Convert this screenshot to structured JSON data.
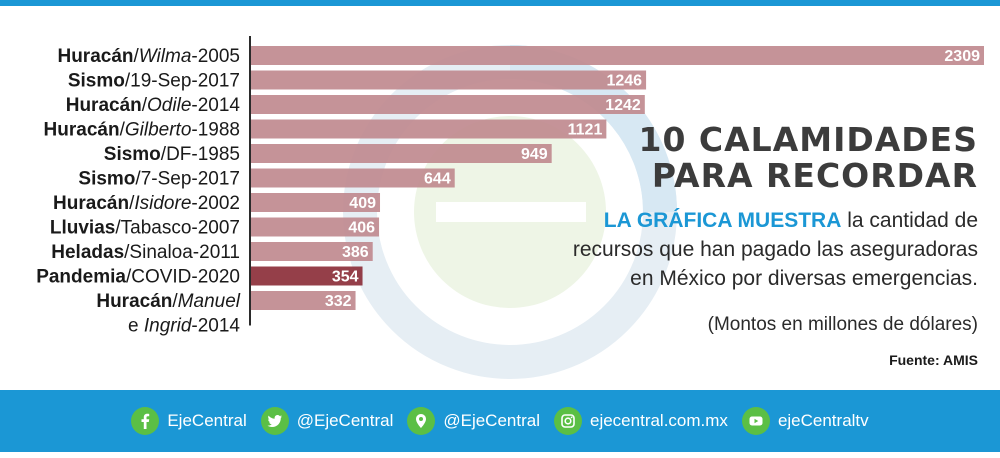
{
  "chart_data": {
    "type": "bar",
    "orientation": "horizontal",
    "categories": [
      {
        "parts": [
          {
            "t": "Huracán",
            "s": "b"
          },
          {
            "t": "/",
            "s": ""
          },
          {
            "t": "Wilma",
            "s": "i"
          },
          {
            "t": "-2005",
            "s": ""
          }
        ]
      },
      {
        "parts": [
          {
            "t": "Sismo",
            "s": "b"
          },
          {
            "t": "/19-Sep-2017",
            "s": ""
          }
        ]
      },
      {
        "parts": [
          {
            "t": "Huracán",
            "s": "b"
          },
          {
            "t": "/",
            "s": ""
          },
          {
            "t": "Odile",
            "s": "i"
          },
          {
            "t": "-2014",
            "s": ""
          }
        ]
      },
      {
        "parts": [
          {
            "t": "Huracán",
            "s": "b"
          },
          {
            "t": "/",
            "s": ""
          },
          {
            "t": "Gilberto",
            "s": "i"
          },
          {
            "t": "-1988",
            "s": ""
          }
        ]
      },
      {
        "parts": [
          {
            "t": "Sismo",
            "s": "b"
          },
          {
            "t": "/DF-1985",
            "s": ""
          }
        ]
      },
      {
        "parts": [
          {
            "t": "Sismo",
            "s": "b"
          },
          {
            "t": "/7-Sep-2017",
            "s": ""
          }
        ]
      },
      {
        "parts": [
          {
            "t": "Huracán",
            "s": "b"
          },
          {
            "t": "/",
            "s": ""
          },
          {
            "t": "Isidore",
            "s": "i"
          },
          {
            "t": "-2002",
            "s": ""
          }
        ]
      },
      {
        "parts": [
          {
            "t": "Lluvias",
            "s": "b"
          },
          {
            "t": "/Tabasco-2007",
            "s": ""
          }
        ]
      },
      {
        "parts": [
          {
            "t": "Heladas",
            "s": "b"
          },
          {
            "t": "/Sinaloa-2011",
            "s": ""
          }
        ]
      },
      {
        "parts": [
          {
            "t": "Pandemia",
            "s": "b"
          },
          {
            "t": "/COVID-2020",
            "s": ""
          }
        ]
      },
      {
        "parts": [
          {
            "t": "Huracán",
            "s": "b"
          },
          {
            "t": "/",
            "s": ""
          },
          {
            "t": "Manuel",
            "s": "i"
          }
        ],
        "line2": [
          {
            "t": "e ",
            "s": ""
          },
          {
            "t": "Ingrid",
            "s": "i"
          },
          {
            "t": "-2014",
            "s": ""
          }
        ]
      }
    ],
    "values": [
      2309,
      1246,
      1242,
      1121,
      949,
      644,
      409,
      406,
      386,
      354,
      332
    ],
    "value_labels": [
      "2309",
      "1246",
      "1242",
      "1121",
      "949",
      "644",
      "409",
      "406",
      "386",
      "354",
      "332"
    ],
    "highlight_index": 9,
    "colors": {
      "bar": "#c08a8f",
      "highlight": "#8c2f3a",
      "axis": "#2b2b2b"
    }
  },
  "title": [
    "10 CALAMIDADES",
    "PARA RECORDAR"
  ],
  "description": {
    "lead": "LA GRÁFICA MUESTRA",
    "rest": " la cantidad de recursos que han pagado las aseguradoras en México por diversas emergencias."
  },
  "note": "(Montos en millones de dólares)",
  "source": "Fuente: AMIS",
  "footer": [
    {
      "icon": "facebook-icon",
      "label": "EjeCentral"
    },
    {
      "icon": "twitter-icon",
      "label": "@EjeCentral"
    },
    {
      "icon": "location-pin-icon",
      "label": "@EjeCentral"
    },
    {
      "icon": "instagram-icon",
      "label": "ejecentral.com.mx"
    },
    {
      "icon": "youtube-icon",
      "label": "ejeCentraltv"
    }
  ],
  "colors": {
    "accent": "#1b97d5",
    "icon_bg": "#5bbf45"
  }
}
